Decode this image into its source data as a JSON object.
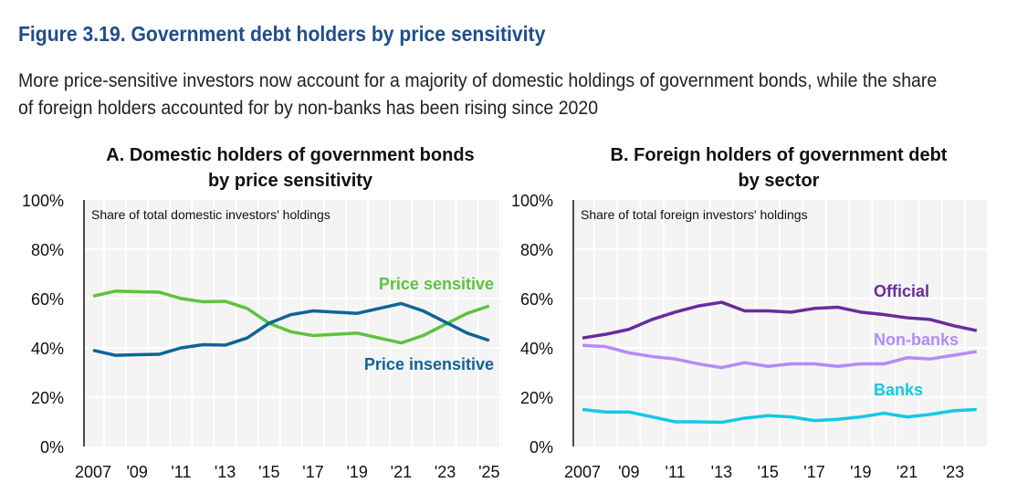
{
  "title": "Figure 3.19. Government debt holders by price sensitivity",
  "subtitle": "More price-sensitive investors now account for a majority of domestic holdings of government bonds, while the share of foreign holders accounted for by non-banks has been rising since 2020",
  "chart_data": [
    {
      "type": "line",
      "title": [
        "A. Domestic holders of government bonds",
        "by price sensitivity"
      ],
      "note": "Share of total domestic investors' holdings",
      "x": [
        2007,
        2008,
        2009,
        2010,
        2011,
        2012,
        2013,
        2014,
        2015,
        2016,
        2017,
        2018,
        2019,
        2020,
        2021,
        2022,
        2023,
        2024,
        2025
      ],
      "xtick_labels": [
        {
          "x": 2007,
          "label": "2007"
        },
        {
          "x": 2009,
          "label": "'09"
        },
        {
          "x": 2011,
          "label": "'11"
        },
        {
          "x": 2013,
          "label": "'13"
        },
        {
          "x": 2015,
          "label": "'15"
        },
        {
          "x": 2017,
          "label": "'17"
        },
        {
          "x": 2019,
          "label": "'19"
        },
        {
          "x": 2021,
          "label": "'21"
        },
        {
          "x": 2023,
          "label": "'23"
        },
        {
          "x": 2025,
          "label": "'25"
        }
      ],
      "ylim": [
        0,
        100
      ],
      "yticks": [
        "0%",
        "20%",
        "40%",
        "60%",
        "80%",
        "100%"
      ],
      "series": [
        {
          "name": "Price sensitive",
          "color": "#5cc43c",
          "values": [
            61,
            63,
            62.8,
            62.6,
            60,
            58.7,
            58.9,
            56,
            50,
            46.5,
            45,
            45.5,
            46,
            44,
            42,
            45,
            49.5,
            54,
            57
          ]
        },
        {
          "name": "Price insensitive",
          "color": "#0f6496",
          "values": [
            39,
            37,
            37.2,
            37.4,
            40,
            41.3,
            41.1,
            44,
            50,
            53.5,
            55,
            54.5,
            54,
            56,
            58,
            55,
            50.5,
            46,
            43
          ]
        }
      ]
    },
    {
      "type": "line",
      "title": [
        "B. Foreign holders of government debt",
        "by sector"
      ],
      "note": "Share of total foreign investors' holdings",
      "x": [
        2007,
        2008,
        2009,
        2010,
        2011,
        2012,
        2013,
        2014,
        2015,
        2016,
        2017,
        2018,
        2019,
        2020,
        2021,
        2022,
        2023,
        2024
      ],
      "xtick_labels": [
        {
          "x": 2007,
          "label": "2007"
        },
        {
          "x": 2009,
          "label": "'09"
        },
        {
          "x": 2011,
          "label": "'11"
        },
        {
          "x": 2013,
          "label": "'13"
        },
        {
          "x": 2015,
          "label": "'15"
        },
        {
          "x": 2017,
          "label": "'17"
        },
        {
          "x": 2019,
          "label": "'19"
        },
        {
          "x": 2021,
          "label": "'21"
        },
        {
          "x": 2023,
          "label": "'23"
        }
      ],
      "ylim": [
        0,
        100
      ],
      "yticks": [
        "0%",
        "20%",
        "40%",
        "60%",
        "80%",
        "100%"
      ],
      "series": [
        {
          "name": "Official",
          "color": "#6a2c9a",
          "values": [
            44,
            45.5,
            47.5,
            51.5,
            54.5,
            57,
            58.5,
            55,
            55,
            54.5,
            56,
            56.5,
            54.5,
            53.5,
            52.2,
            51.5,
            49,
            47
          ]
        },
        {
          "name": "Non-banks",
          "color": "#b28cf7",
          "values": [
            41,
            40.5,
            38,
            36.5,
            35.5,
            33.5,
            32,
            34,
            32.5,
            33.5,
            33.5,
            32.5,
            33.5,
            33.5,
            36,
            35.5,
            37,
            38.5
          ]
        },
        {
          "name": "Banks",
          "color": "#14c8e6",
          "values": [
            15,
            14,
            14,
            12,
            10,
            10,
            9.8,
            11.5,
            12.5,
            12,
            10.5,
            11,
            12,
            13.5,
            12,
            13,
            14.5,
            15
          ]
        }
      ]
    }
  ]
}
